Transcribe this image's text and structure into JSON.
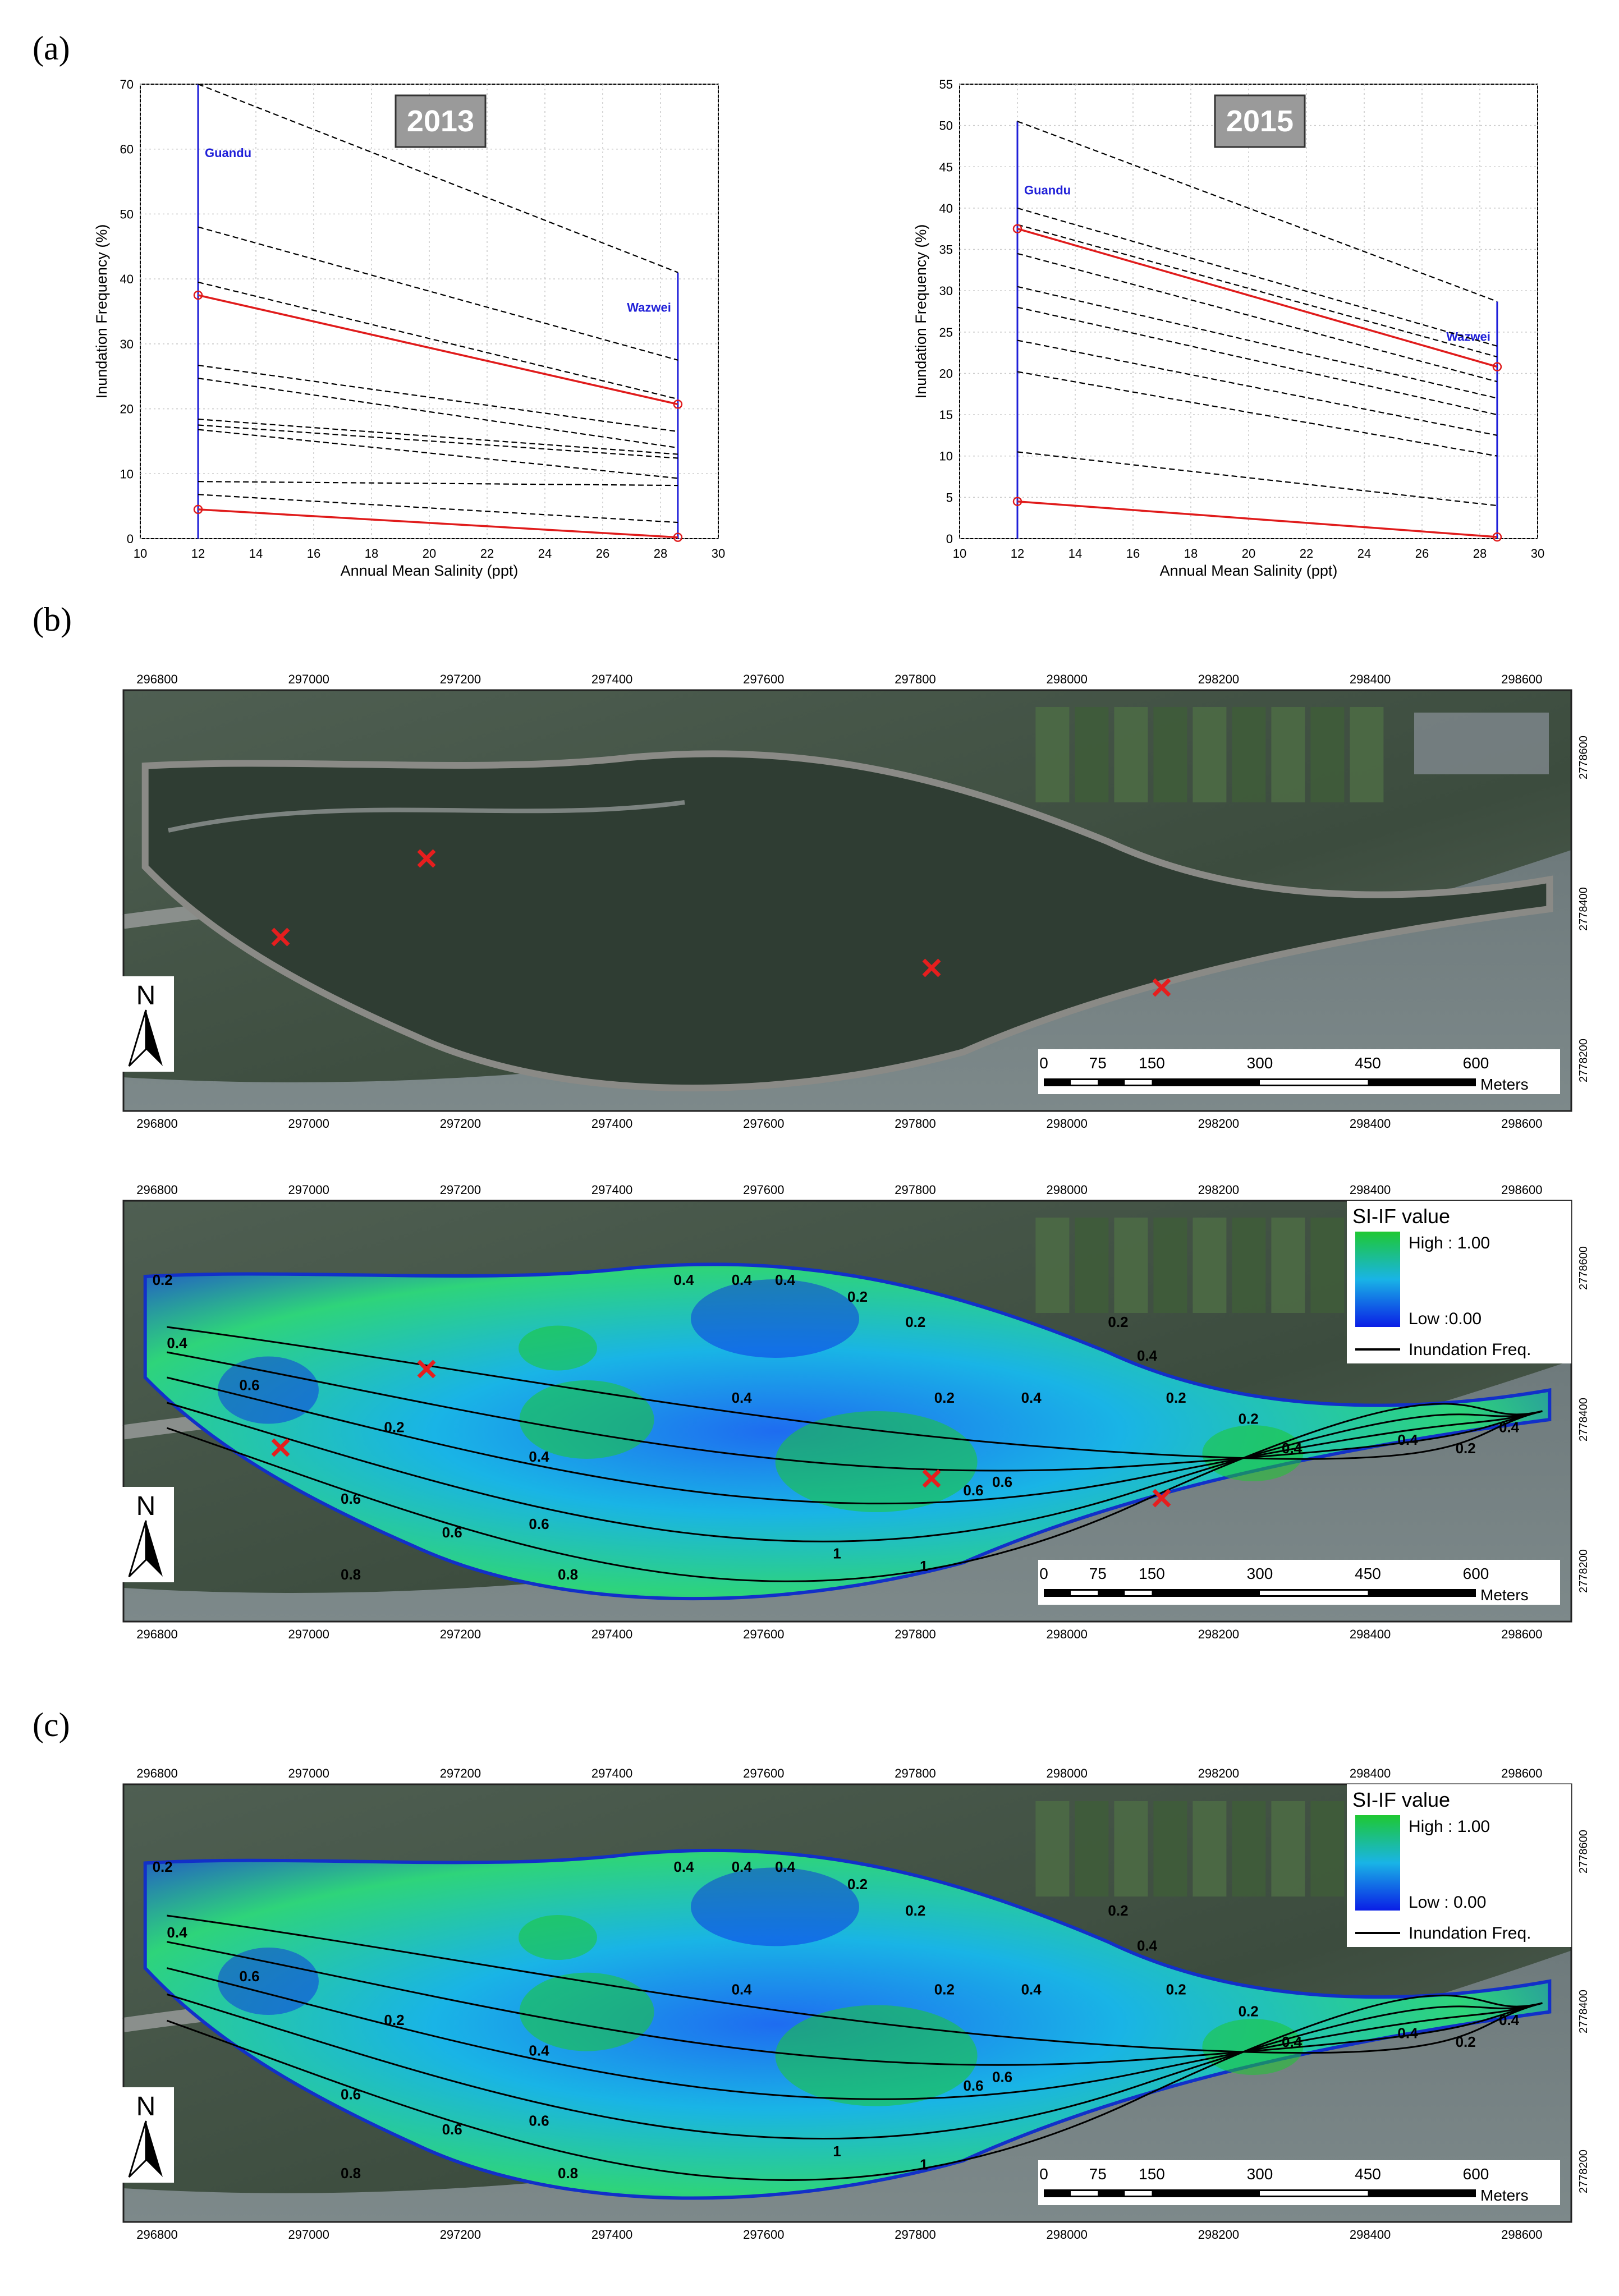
{
  "panel_labels": {
    "a": "(a)",
    "b": "(b)",
    "c": "(c)"
  },
  "chart_data": [
    {
      "type": "line",
      "title": "2013",
      "xlabel": "Annual Mean Salinity (ppt)",
      "ylabel": "Inundation Frequency (%)",
      "xlim": [
        10,
        30
      ],
      "ylim": [
        0,
        70
      ],
      "xticks": [
        "10",
        "12",
        "14",
        "16",
        "18",
        "20",
        "22",
        "24",
        "26",
        "28",
        "30"
      ],
      "yticks": [
        "0",
        "10",
        "20",
        "30",
        "40",
        "50",
        "60",
        "70"
      ],
      "grid": true,
      "stations": [
        {
          "name": "Guandu",
          "salinity": 12,
          "max_if": 70
        },
        {
          "name": "Wazwei",
          "salinity": 28.6,
          "max_if": 41
        }
      ],
      "series": [
        {
          "style": "dashed",
          "x": [
            12,
            28.6
          ],
          "y": [
            70,
            41
          ]
        },
        {
          "style": "dashed",
          "x": [
            12,
            28.6
          ],
          "y": [
            48,
            27.5
          ]
        },
        {
          "style": "dashed",
          "x": [
            12,
            28.6
          ],
          "y": [
            39.5,
            21.5
          ]
        },
        {
          "style": "solid-red",
          "x": [
            12,
            28.6
          ],
          "y": [
            37.5,
            20.7
          ]
        },
        {
          "style": "dashed",
          "x": [
            12,
            28.6
          ],
          "y": [
            26.7,
            16.5
          ]
        },
        {
          "style": "dashed",
          "x": [
            12,
            28.6
          ],
          "y": [
            24.7,
            14
          ]
        },
        {
          "style": "dashed",
          "x": [
            12,
            28.6
          ],
          "y": [
            18.4,
            13
          ]
        },
        {
          "style": "dashed",
          "x": [
            12,
            28.6
          ],
          "y": [
            17.5,
            12.4
          ]
        },
        {
          "style": "dashed",
          "x": [
            12,
            28.6
          ],
          "y": [
            16.8,
            9.3
          ]
        },
        {
          "style": "dashed",
          "x": [
            12,
            28.6
          ],
          "y": [
            8.8,
            8.2
          ]
        },
        {
          "style": "dashed",
          "x": [
            12,
            28.6
          ],
          "y": [
            6.8,
            2.5
          ]
        },
        {
          "style": "solid-red",
          "x": [
            12,
            28.6
          ],
          "y": [
            4.5,
            0.2
          ]
        }
      ]
    },
    {
      "type": "line",
      "title": "2015",
      "xlabel": "Annual Mean Salinity (ppt)",
      "ylabel": "Inundation Frequency (%)",
      "xlim": [
        10,
        30
      ],
      "ylim": [
        0,
        55
      ],
      "xticks": [
        "10",
        "12",
        "14",
        "16",
        "18",
        "20",
        "22",
        "24",
        "26",
        "28",
        "30"
      ],
      "yticks": [
        "0",
        "5",
        "10",
        "15",
        "20",
        "25",
        "30",
        "35",
        "40",
        "45",
        "50",
        "55"
      ],
      "grid": true,
      "stations": [
        {
          "name": "Guandu",
          "salinity": 12,
          "max_if": 50.5
        },
        {
          "name": "Wazwei",
          "salinity": 28.6,
          "max_if": 28.7
        }
      ],
      "series": [
        {
          "style": "dashed",
          "x": [
            12,
            28.6
          ],
          "y": [
            50.5,
            28.7
          ]
        },
        {
          "style": "dashed",
          "x": [
            12,
            28.6
          ],
          "y": [
            40,
            23.3
          ]
        },
        {
          "style": "dashed",
          "x": [
            12,
            28.6
          ],
          "y": [
            38,
            22
          ]
        },
        {
          "style": "solid-red",
          "x": [
            12,
            28.6
          ],
          "y": [
            37.5,
            20.8
          ]
        },
        {
          "style": "dashed",
          "x": [
            12,
            28.6
          ],
          "y": [
            34.5,
            19
          ]
        },
        {
          "style": "dashed",
          "x": [
            12,
            28.6
          ],
          "y": [
            30.5,
            17
          ]
        },
        {
          "style": "dashed",
          "x": [
            12,
            28.6
          ],
          "y": [
            28,
            15
          ]
        },
        {
          "style": "dashed",
          "x": [
            12,
            28.6
          ],
          "y": [
            24,
            12.5
          ]
        },
        {
          "style": "dashed",
          "x": [
            12,
            28.6
          ],
          "y": [
            20.2,
            10
          ]
        },
        {
          "style": "dashed",
          "x": [
            12,
            28.6
          ],
          "y": [
            10.5,
            4
          ]
        },
        {
          "style": "solid-red",
          "x": [
            12,
            28.6
          ],
          "y": [
            4.5,
            0.2
          ]
        }
      ]
    }
  ],
  "maps": {
    "x_ticks": [
      "296800",
      "297000",
      "297200",
      "297400",
      "297600",
      "297800",
      "298000",
      "298200",
      "298400",
      "298600"
    ],
    "y_ticks": [
      "2778200",
      "2778400",
      "2778600"
    ],
    "scalebar": {
      "values": [
        "0",
        "75",
        "150",
        "300",
        "450",
        "600"
      ],
      "unit": "Meters"
    },
    "north": "N",
    "legend": {
      "title": "SI-IF value",
      "high": "High : 1.00",
      "low_b": "Low :0.00",
      "low_c": "Low : 0.00",
      "line": "Inundation Freq."
    },
    "contour_labels_b": [
      "0.2",
      "0.4",
      "0.6",
      "0.8",
      "1",
      "0.2",
      "0.4",
      "0.6",
      "0.6",
      "0.4",
      "0.4",
      "0.4",
      "0.2",
      "0.2",
      "0.4",
      "0.2",
      "0.6",
      "0.8",
      "0.2",
      "0.4",
      "0.6",
      "0.4",
      "0.2",
      "0.4",
      "0.4",
      "0.2",
      "0.2",
      "0.4",
      "0.6",
      "1"
    ],
    "contour_labels_c": [
      "0.2",
      "0.4",
      "0.6",
      "0.8",
      "1",
      "0.2",
      "0.4",
      "0.6",
      "0.6",
      "0.4",
      "0.4",
      "0.4",
      "0.2",
      "0.2",
      "0.4",
      "0.2",
      "0.6",
      "0.8",
      "0.2",
      "0.4",
      "0.6",
      "0.4",
      "0.2",
      "0.4",
      "0.4",
      "0.2",
      "0.2",
      "0.4",
      "0.6",
      "1"
    ],
    "colors": {
      "high": "#1ec832",
      "mid": "#19b4e6",
      "low": "#0a1ee6",
      "marker": "#e61e1e"
    }
  }
}
